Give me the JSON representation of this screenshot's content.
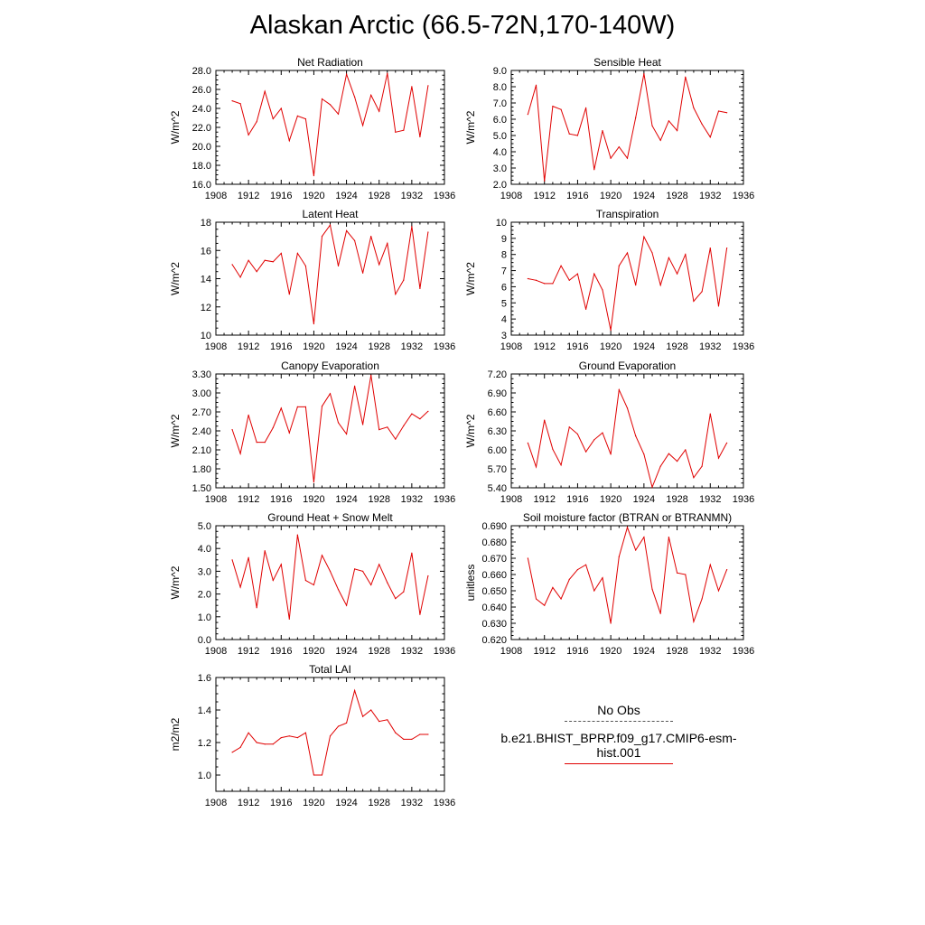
{
  "title": "Alaskan Arctic (66.5-72N,170-140W)",
  "legend": {
    "obs_label": "No Obs",
    "model_label": "b.e21.BHIST_BPRP.f09_g17.CMIP6-esm-hist.001",
    "model_color": "#e00000",
    "obs_color": "#555555"
  },
  "chart_data": [
    {
      "type": "line",
      "title": "Net Radiation",
      "ylabel": "W/m^2",
      "xlim": [
        1908,
        1936
      ],
      "xticks": [
        "1908",
        "1912",
        "1916",
        "1920",
        "1924",
        "1928",
        "1932",
        "1936"
      ],
      "ylim": [
        16.0,
        28.0
      ],
      "yticks": [
        "16.0",
        "18.0",
        "20.0",
        "22.0",
        "24.0",
        "26.0",
        "28.0"
      ],
      "x": [
        1910,
        1911,
        1912,
        1913,
        1914,
        1915,
        1916,
        1917,
        1918,
        1919,
        1920,
        1921,
        1922,
        1923,
        1924,
        1925,
        1926,
        1927,
        1928,
        1929,
        1930,
        1931,
        1932,
        1933,
        1934
      ],
      "series": [
        {
          "values": [
            24.8,
            24.5,
            21.2,
            22.6,
            25.8,
            22.9,
            24.0,
            20.6,
            23.2,
            22.9,
            16.9,
            25.0,
            24.4,
            23.4,
            27.6,
            25.2,
            22.2,
            25.4,
            23.7,
            27.7,
            21.5,
            21.7,
            26.3,
            21.0,
            26.4
          ]
        }
      ]
    },
    {
      "type": "line",
      "title": "Sensible Heat",
      "ylabel": "W/m^2",
      "xlim": [
        1908,
        1936
      ],
      "xticks": [
        "1908",
        "1912",
        "1916",
        "1920",
        "1924",
        "1928",
        "1932",
        "1936"
      ],
      "ylim": [
        2.0,
        9.0
      ],
      "yticks": [
        "2.0",
        "3.0",
        "4.0",
        "5.0",
        "6.0",
        "7.0",
        "8.0",
        "9.0"
      ],
      "x": [
        1910,
        1911,
        1912,
        1913,
        1914,
        1915,
        1916,
        1917,
        1918,
        1919,
        1920,
        1921,
        1922,
        1923,
        1924,
        1925,
        1926,
        1927,
        1928,
        1929,
        1930,
        1931,
        1932,
        1933,
        1934
      ],
      "series": [
        {
          "values": [
            6.3,
            8.1,
            2.2,
            6.8,
            6.6,
            5.1,
            5.0,
            6.7,
            2.9,
            5.3,
            3.6,
            4.3,
            3.6,
            6.1,
            8.8,
            5.6,
            4.7,
            5.9,
            5.3,
            8.6,
            6.7,
            5.7,
            4.9,
            6.5,
            6.4
          ]
        }
      ]
    },
    {
      "type": "line",
      "title": "Latent Heat",
      "ylabel": "W/m^2",
      "xlim": [
        1908,
        1936
      ],
      "xticks": [
        "1908",
        "1912",
        "1916",
        "1920",
        "1924",
        "1928",
        "1932",
        "1936"
      ],
      "ylim": [
        10,
        18
      ],
      "yticks": [
        "10",
        "12",
        "14",
        "16",
        "18"
      ],
      "x": [
        1910,
        1911,
        1912,
        1913,
        1914,
        1915,
        1916,
        1917,
        1918,
        1919,
        1920,
        1921,
        1922,
        1923,
        1924,
        1925,
        1926,
        1927,
        1928,
        1929,
        1930,
        1931,
        1932,
        1933,
        1934
      ],
      "series": [
        {
          "values": [
            15.0,
            14.1,
            15.3,
            14.5,
            15.3,
            15.2,
            15.8,
            12.9,
            15.8,
            14.9,
            10.8,
            17.0,
            17.8,
            14.9,
            17.4,
            16.7,
            14.4,
            17.0,
            15.0,
            16.5,
            12.9,
            13.9,
            17.7,
            13.3,
            17.3
          ]
        }
      ]
    },
    {
      "type": "line",
      "title": "Transpiration",
      "ylabel": "W/m^2",
      "xlim": [
        1908,
        1936
      ],
      "xticks": [
        "1908",
        "1912",
        "1916",
        "1920",
        "1924",
        "1928",
        "1932",
        "1936"
      ],
      "ylim": [
        3,
        10
      ],
      "yticks": [
        "3",
        "4",
        "5",
        "6",
        "7",
        "8",
        "9",
        "10"
      ],
      "x": [
        1910,
        1911,
        1912,
        1913,
        1914,
        1915,
        1916,
        1917,
        1918,
        1919,
        1920,
        1921,
        1922,
        1923,
        1924,
        1925,
        1926,
        1927,
        1928,
        1929,
        1930,
        1931,
        1932,
        1933,
        1934
      ],
      "series": [
        {
          "values": [
            6.5,
            6.4,
            6.2,
            6.2,
            7.3,
            6.4,
            6.8,
            4.6,
            6.8,
            5.8,
            3.3,
            7.3,
            8.1,
            6.1,
            9.1,
            8.1,
            6.1,
            7.8,
            6.8,
            8.0,
            5.1,
            5.7,
            8.4,
            4.8,
            8.4
          ]
        }
      ]
    },
    {
      "type": "line",
      "title": "Canopy Evaporation",
      "ylabel": "W/m^2",
      "xlim": [
        1908,
        1936
      ],
      "xticks": [
        "1908",
        "1912",
        "1916",
        "1920",
        "1924",
        "1928",
        "1932",
        "1936"
      ],
      "ylim": [
        1.5,
        3.3
      ],
      "yticks": [
        "1.50",
        "1.80",
        "2.10",
        "2.40",
        "2.70",
        "3.00",
        "3.30"
      ],
      "x": [
        1910,
        1911,
        1912,
        1913,
        1914,
        1915,
        1916,
        1917,
        1918,
        1919,
        1920,
        1921,
        1922,
        1923,
        1924,
        1925,
        1926,
        1927,
        1928,
        1929,
        1930,
        1931,
        1932,
        1933,
        1934
      ],
      "series": [
        {
          "values": [
            2.42,
            2.04,
            2.65,
            2.22,
            2.22,
            2.45,
            2.76,
            2.37,
            2.78,
            2.78,
            1.59,
            2.79,
            2.99,
            2.53,
            2.35,
            3.11,
            2.5,
            3.28,
            2.42,
            2.46,
            2.27,
            2.48,
            2.67,
            2.59,
            2.71
          ]
        }
      ]
    },
    {
      "type": "line",
      "title": "Ground Evaporation",
      "ylabel": "W/m^2",
      "xlim": [
        1908,
        1936
      ],
      "xticks": [
        "1908",
        "1912",
        "1916",
        "1920",
        "1924",
        "1928",
        "1932",
        "1936"
      ],
      "ylim": [
        5.4,
        7.2
      ],
      "yticks": [
        "5.40",
        "5.70",
        "6.00",
        "6.30",
        "6.60",
        "6.90",
        "7.20"
      ],
      "x": [
        1910,
        1911,
        1912,
        1913,
        1914,
        1915,
        1916,
        1917,
        1918,
        1919,
        1920,
        1921,
        1922,
        1923,
        1924,
        1925,
        1926,
        1927,
        1928,
        1929,
        1930,
        1931,
        1932,
        1933,
        1934
      ],
      "series": [
        {
          "values": [
            6.11,
            5.73,
            6.47,
            6.01,
            5.76,
            6.36,
            6.25,
            5.97,
            6.16,
            6.27,
            5.93,
            6.95,
            6.66,
            6.22,
            5.93,
            5.41,
            5.74,
            5.94,
            5.82,
            6.0,
            5.56,
            5.74,
            6.57,
            5.87,
            6.11
          ]
        }
      ]
    },
    {
      "type": "line",
      "title": "Ground Heat + Snow Melt",
      "ylabel": "W/m^2",
      "xlim": [
        1908,
        1936
      ],
      "xticks": [
        "1908",
        "1912",
        "1916",
        "1920",
        "1924",
        "1928",
        "1932",
        "1936"
      ],
      "ylim": [
        0.0,
        5.0
      ],
      "yticks": [
        "0.0",
        "1.0",
        "2.0",
        "3.0",
        "4.0",
        "5.0"
      ],
      "x": [
        1910,
        1911,
        1912,
        1913,
        1914,
        1915,
        1916,
        1917,
        1918,
        1919,
        1920,
        1921,
        1922,
        1923,
        1924,
        1925,
        1926,
        1927,
        1928,
        1929,
        1930,
        1931,
        1932,
        1933,
        1934
      ],
      "series": [
        {
          "values": [
            3.5,
            2.3,
            3.6,
            1.4,
            3.9,
            2.6,
            3.3,
            0.9,
            4.6,
            2.6,
            2.4,
            3.7,
            3.0,
            2.2,
            1.5,
            3.1,
            3.0,
            2.4,
            3.3,
            2.5,
            1.8,
            2.1,
            3.8,
            1.1,
            2.8
          ]
        }
      ]
    },
    {
      "type": "line",
      "title": "Soil moisture factor (BTRAN or BTRANMN)",
      "ylabel": "unitless",
      "xlim": [
        1908,
        1936
      ],
      "xticks": [
        "1908",
        "1912",
        "1916",
        "1920",
        "1924",
        "1928",
        "1932",
        "1936"
      ],
      "ylim": [
        0.62,
        0.69
      ],
      "yticks": [
        "0.620",
        "0.630",
        "0.640",
        "0.650",
        "0.660",
        "0.670",
        "0.680",
        "0.690"
      ],
      "x": [
        1910,
        1911,
        1912,
        1913,
        1914,
        1915,
        1916,
        1917,
        1918,
        1919,
        1920,
        1921,
        1922,
        1923,
        1924,
        1925,
        1926,
        1927,
        1928,
        1929,
        1930,
        1931,
        1932,
        1933,
        1934
      ],
      "series": [
        {
          "values": [
            0.67,
            0.645,
            0.641,
            0.652,
            0.645,
            0.657,
            0.663,
            0.666,
            0.65,
            0.658,
            0.63,
            0.671,
            0.689,
            0.675,
            0.683,
            0.651,
            0.636,
            0.683,
            0.661,
            0.66,
            0.631,
            0.645,
            0.666,
            0.65,
            0.663
          ]
        }
      ]
    },
    {
      "type": "line",
      "title": "Total LAI",
      "ylabel": "m2/m2",
      "xlim": [
        1908,
        1936
      ],
      "xticks": [
        "1908",
        "1912",
        "1916",
        "1920",
        "1924",
        "1928",
        "1932",
        "1936"
      ],
      "ylim": [
        0.9,
        1.6
      ],
      "yticks": [
        "1.0",
        "1.2",
        "1.4",
        "1.6"
      ],
      "ytick_values": [
        1.0,
        1.2,
        1.4,
        1.6
      ],
      "x": [
        1910,
        1911,
        1912,
        1913,
        1914,
        1915,
        1916,
        1917,
        1918,
        1919,
        1920,
        1921,
        1922,
        1923,
        1924,
        1925,
        1926,
        1927,
        1928,
        1929,
        1930,
        1931,
        1932,
        1933,
        1934
      ],
      "series": [
        {
          "values": [
            1.14,
            1.17,
            1.26,
            1.2,
            1.19,
            1.19,
            1.23,
            1.24,
            1.23,
            1.26,
            1.0,
            1.0,
            1.24,
            1.3,
            1.32,
            1.52,
            1.36,
            1.4,
            1.33,
            1.34,
            1.26,
            1.22,
            1.22,
            1.25,
            1.25
          ]
        }
      ]
    }
  ]
}
